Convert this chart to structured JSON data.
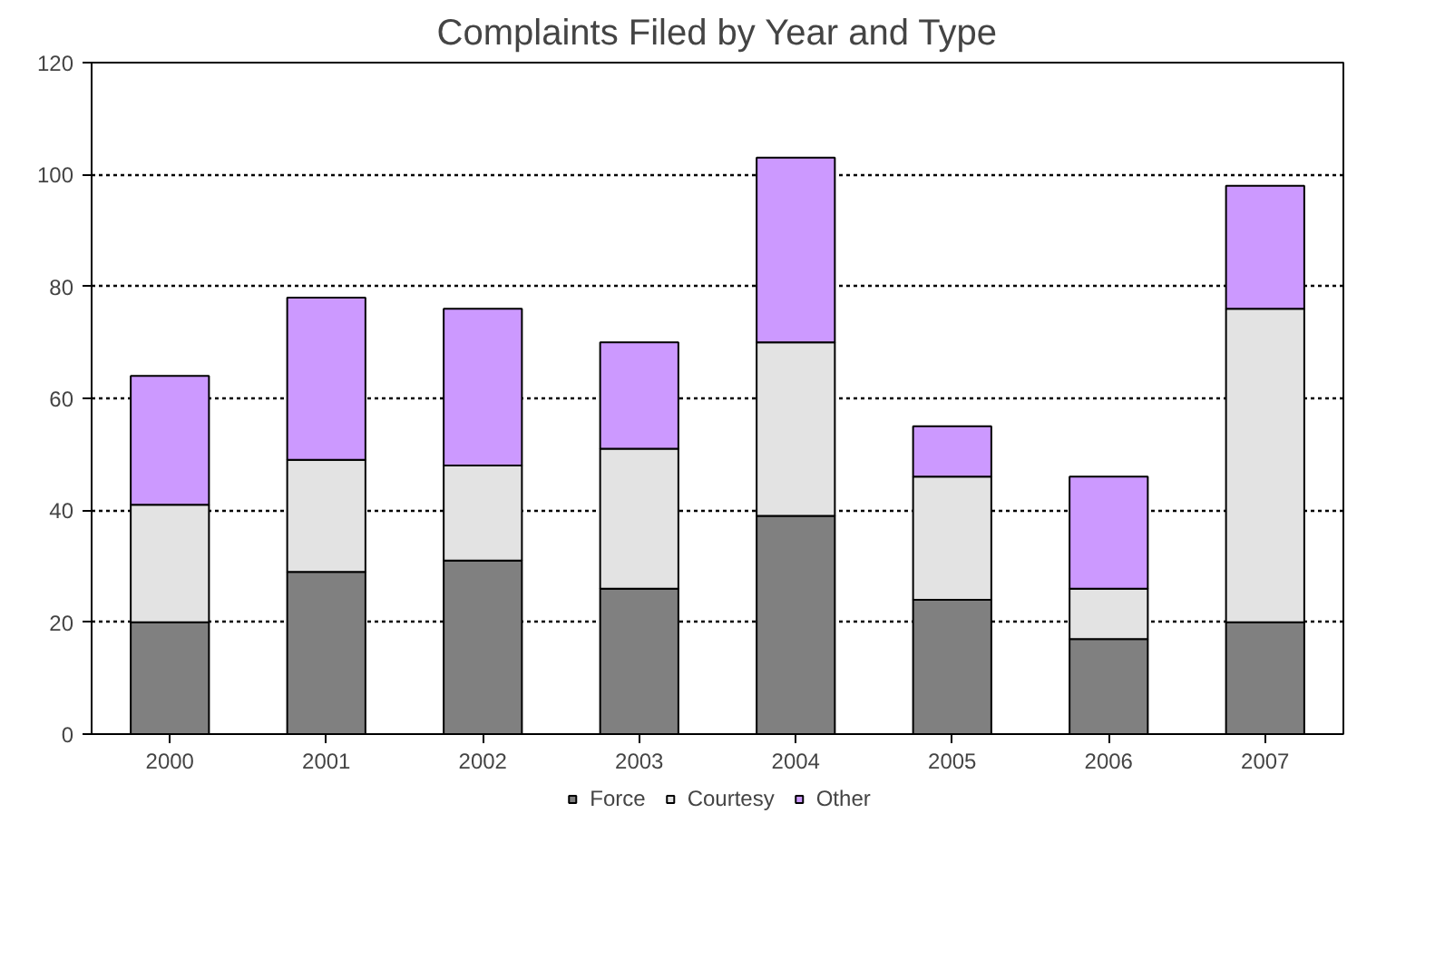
{
  "chart_data": {
    "type": "bar",
    "title": "Complaints Filed by Year and Type",
    "categories": [
      "2000",
      "2001",
      "2002",
      "2003",
      "2004",
      "2005",
      "2006",
      "2007"
    ],
    "stacked": true,
    "series": [
      {
        "name": "Force",
        "color": "#808080",
        "values": [
          20,
          29,
          31,
          26,
          39,
          24,
          17,
          20
        ]
      },
      {
        "name": "Courtesy",
        "color": "#e3e3e3",
        "values": [
          21,
          20,
          17,
          25,
          31,
          22,
          9,
          56
        ]
      },
      {
        "name": "Other",
        "color": "#cc99ff",
        "values": [
          23,
          29,
          28,
          19,
          33,
          9,
          20,
          22
        ]
      }
    ],
    "ylim": [
      0,
      120
    ],
    "yticks": [
      0,
      20,
      40,
      60,
      80,
      100,
      120
    ],
    "grid": "y",
    "legend": "bottom"
  }
}
